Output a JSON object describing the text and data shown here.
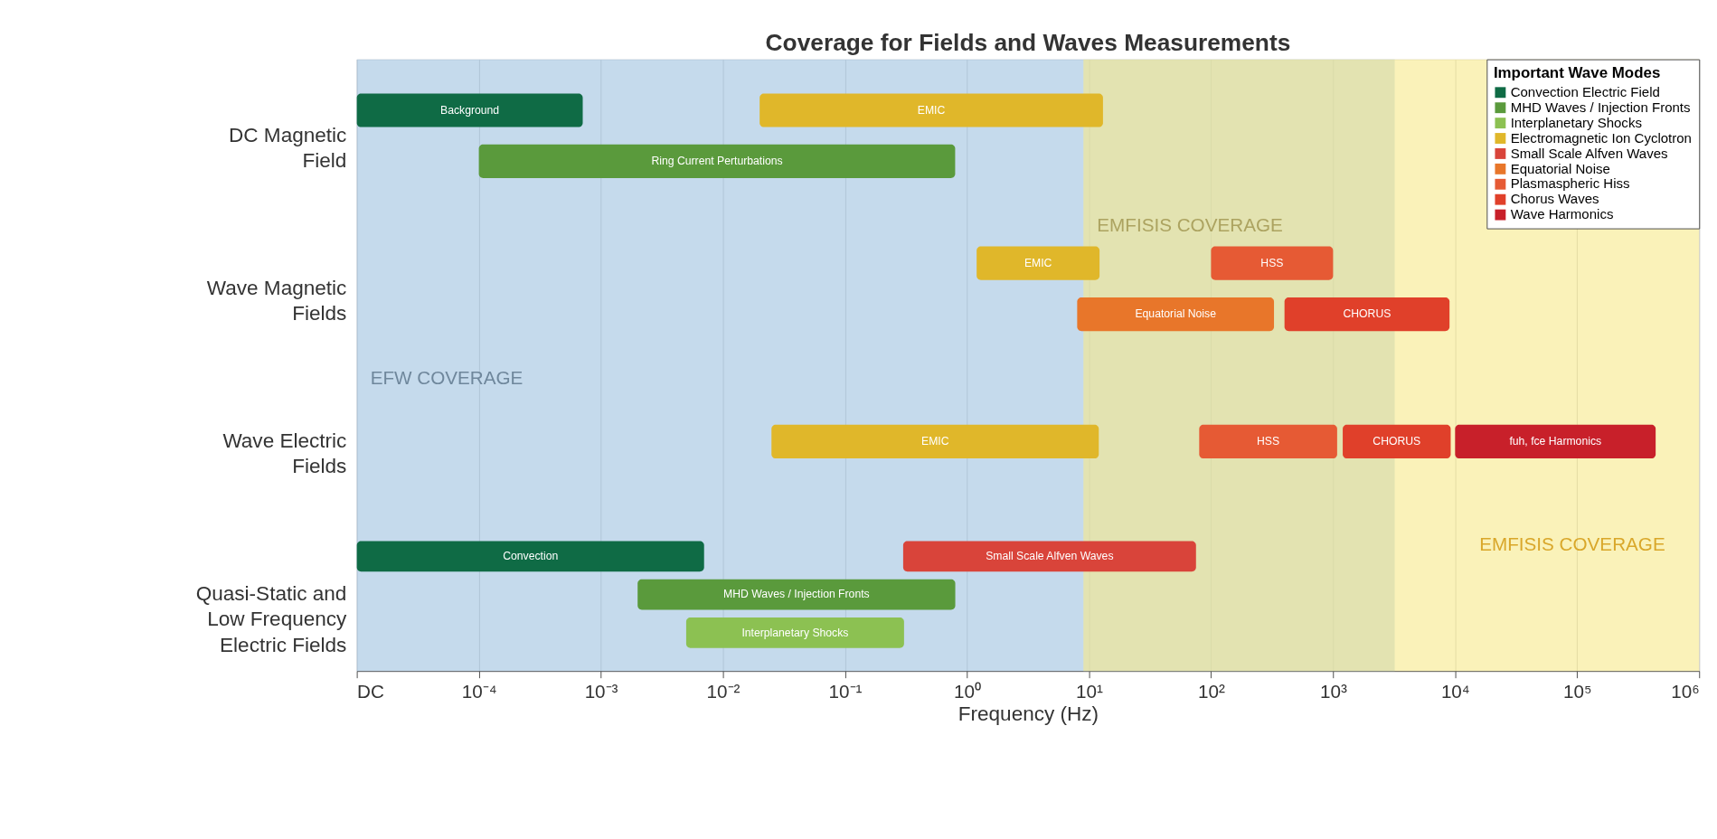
{
  "chart_data": {
    "type": "bar",
    "orientation": "horizontal",
    "title": "Coverage for Fields and Waves Measurements",
    "xlabel": "Frequency (Hz)",
    "categories": [
      "DC Magnetic Field",
      "Wave Magnetic Fields",
      "Wave Electric Fields",
      "Quasi-Static and Low Frequency Electric Fields"
    ],
    "legend_title": "Important Wave Modes",
    "legend": "top right",
    "log": "x",
    "grid": "x",
    "xlim": [
      1e-05,
      1000000
    ],
    "xticks": [
      {
        "value": 1e-05,
        "label": "DC"
      },
      {
        "value": 0.0001,
        "label": "10⁻⁴"
      },
      {
        "value": 0.001,
        "label": "10⁻³"
      },
      {
        "value": 0.01,
        "label": "10⁻²"
      },
      {
        "value": 0.1,
        "label": "10⁻¹"
      },
      {
        "value": 1,
        "label": "10⁰"
      },
      {
        "value": 10,
        "label": "10¹"
      },
      {
        "value": 100,
        "label": "10²"
      },
      {
        "value": 1000,
        "label": "10³"
      },
      {
        "value": 10000,
        "label": "10⁴"
      },
      {
        "value": 100000,
        "label": "10⁵"
      },
      {
        "value": 1000000,
        "label": "10⁶"
      }
    ],
    "series": [
      {
        "name": "Convection Electric Field",
        "color": "#0f6b45",
        "base": [
          1e-05,
          null,
          null,
          1e-05
        ],
        "values": [
          0.0007,
          null,
          null,
          0.007
        ]
      },
      {
        "name": "MHD Waves / Injection Fronts",
        "color": "#5a9a3c",
        "base": [
          0.0001,
          null,
          null,
          0.002
        ],
        "values": [
          0.8,
          null,
          null,
          0.8
        ]
      },
      {
        "name": "Interplanetary Shocks",
        "color": "#8cc152",
        "base": [
          null,
          null,
          null,
          0.005
        ],
        "values": [
          null,
          null,
          null,
          0.3
        ]
      },
      {
        "name": "Electromagnetic Ion Cyclotron",
        "color": "#e0b72a",
        "base": [
          0.02,
          1.2,
          0.025,
          null
        ],
        "values": [
          13,
          11,
          12,
          null
        ]
      },
      {
        "name": "Small Scale Alfven Waves",
        "color": "#d9443a",
        "base": [
          null,
          null,
          null,
          0.3
        ],
        "values": [
          null,
          null,
          null,
          75
        ]
      },
      {
        "name": "Equatorial Noise",
        "color": "#e8762a",
        "base": [
          null,
          8,
          null,
          null
        ],
        "values": [
          null,
          320,
          null,
          null
        ]
      },
      {
        "name": "Plasmaspheric Hiss",
        "color": "#e65a34",
        "base": [
          null,
          100,
          80,
          null
        ],
        "values": [
          null,
          900,
          1000,
          null
        ]
      },
      {
        "name": "Chorus Waves",
        "color": "#e0402a",
        "base": [
          null,
          400,
          1200,
          null
        ],
        "values": [
          null,
          8600,
          8000,
          null
        ]
      },
      {
        "name": "Wave Harmonics",
        "color": "#c8202a",
        "base": [
          null,
          null,
          10000,
          null
        ],
        "values": [
          null,
          null,
          430000,
          null
        ]
      }
    ],
    "bands": [
      {
        "axis": "x",
        "from": 1e-05,
        "to": 3200,
        "label": "EFW COVERAGE",
        "color": "#9fc2e0"
      },
      {
        "axis": "x",
        "from": 9,
        "to": 1000000,
        "label": "EMFISIS COVERAGE",
        "color": "#f6e98a"
      }
    ],
    "annotations": [
      "Background",
      "Convection",
      "Ring Current Perturbations",
      "MHD Waves / Injection Fronts",
      "Interplanetary Shocks",
      "EMIC",
      "EMIC",
      "EMIC",
      "Small Scale Alfven Waves",
      "Equatorial Noise",
      "HSS",
      "HSS",
      "CHORUS",
      "CHORUS",
      "fuh, fce Harmonics",
      "EMFISIS COVERAGE"
    ]
  }
}
